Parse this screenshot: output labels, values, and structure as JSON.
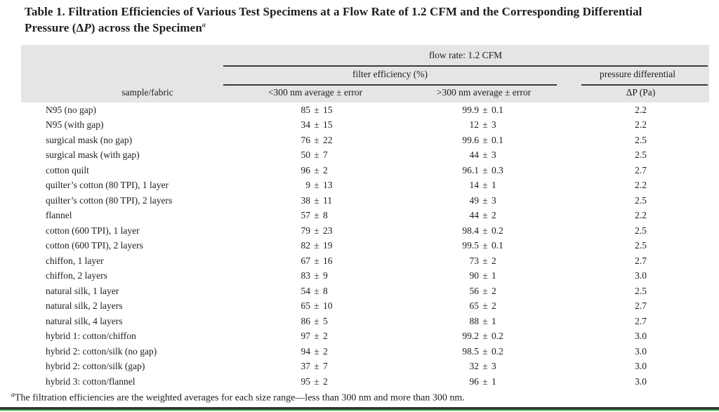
{
  "title": {
    "line1": "Table 1. Filtration Efficiencies of Various Test Specimens at a Flow Rate of 1.2 CFM and the Corresponding Differential",
    "line2_pre": "Pressure (Δ",
    "line2_italic": "P",
    "line2_post": ") across the Specimen",
    "footnote_marker": "a"
  },
  "table": {
    "header": {
      "flow_rate": "flow rate: 1.2 CFM",
      "filter_efficiency": "filter efficiency (%)",
      "pressure_differential": "pressure differential",
      "columns": [
        "sample/fabric",
        "<300 nm average ± error",
        ">300 nm average ± error",
        "ΔP (Pa)"
      ]
    },
    "rows": [
      {
        "sample": "N95 (no gap)",
        "lt300": "85 ± 15",
        "gt300": "99.9 ± 0.1",
        "dp": "2.2"
      },
      {
        "sample": "N95 (with gap)",
        "lt300": "34 ± 15",
        "gt300": "12 ± 3",
        "dp": "2.2"
      },
      {
        "sample": "surgical mask (no gap)",
        "lt300": "76 ± 22",
        "gt300": "99.6 ± 0.1",
        "dp": "2.5"
      },
      {
        "sample": "surgical mask (with gap)",
        "lt300": "50 ± 7",
        "gt300": "44 ± 3",
        "dp": "2.5"
      },
      {
        "sample": "cotton quilt",
        "lt300": "96 ± 2",
        "gt300": "96.1 ± 0.3",
        "dp": "2.7"
      },
      {
        "sample": "quilter’s cotton (80 TPI), 1 layer",
        "lt300": "9 ± 13",
        "gt300": "14 ± 1",
        "dp": "2.2"
      },
      {
        "sample": "quilter’s cotton (80 TPI), 2 layers",
        "lt300": "38 ± 11",
        "gt300": "49 ± 3",
        "dp": "2.5"
      },
      {
        "sample": "flannel",
        "lt300": "57 ± 8",
        "gt300": "44 ± 2",
        "dp": "2.2"
      },
      {
        "sample": "cotton (600 TPI), 1 layer",
        "lt300": "79 ± 23",
        "gt300": "98.4 ± 0.2",
        "dp": "2.5"
      },
      {
        "sample": "cotton (600 TPI), 2 layers",
        "lt300": "82 ± 19",
        "gt300": "99.5 ± 0.1",
        "dp": "2.5"
      },
      {
        "sample": "chiffon, 1 layer",
        "lt300": "67 ± 16",
        "gt300": "73 ± 2",
        "dp": "2.7"
      },
      {
        "sample": "chiffon, 2 layers",
        "lt300": "83 ± 9",
        "gt300": "90 ± 1",
        "dp": "3.0"
      },
      {
        "sample": "natural silk, 1 layer",
        "lt300": "54 ± 8",
        "gt300": "56 ± 2",
        "dp": "2.5"
      },
      {
        "sample": "natural silk, 2 layers",
        "lt300": "65 ± 10",
        "gt300": "65 ± 2",
        "dp": "2.7"
      },
      {
        "sample": "natural silk, 4 layers",
        "lt300": "86 ± 5",
        "gt300": "88 ± 1",
        "dp": "2.7"
      },
      {
        "sample": "hybrid 1: cotton/chiffon",
        "lt300": "97 ± 2",
        "gt300": "99.2 ± 0.2",
        "dp": "3.0"
      },
      {
        "sample": "hybrid 2: cotton/silk (no gap)",
        "lt300": "94 ± 2",
        "gt300": "98.5 ± 0.2",
        "dp": "3.0"
      },
      {
        "sample": "hybrid 2: cotton/silk (gap)",
        "lt300": "37 ± 7",
        "gt300": "32 ± 3",
        "dp": "3.0"
      },
      {
        "sample": "hybrid 3: cotton/flannel",
        "lt300": "95 ± 2",
        "gt300": "96 ± 1",
        "dp": "3.0"
      }
    ]
  },
  "footnote": {
    "marker": "a",
    "text": "The filtration efficiencies are the weighted averages for each size range—less than 300 nm and more than 300 nm."
  },
  "colors": {
    "header_band": "#e5e5e5",
    "rule": "#3c3c3c",
    "edge_dark": "#333333",
    "edge_green": "#2e9135"
  }
}
